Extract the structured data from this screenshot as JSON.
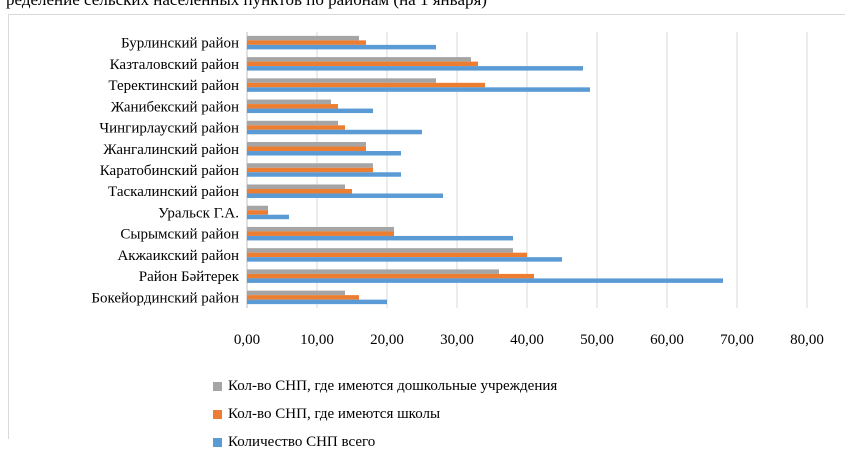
{
  "caption": "ределение сельских населенных пунктов по районам (на 1 января)",
  "chart_data": {
    "type": "bar",
    "orientation": "horizontal",
    "categories": [
      "Бурлинский район",
      "Казталовский район",
      "Теректинский район",
      "Жанибекский район",
      "Чингирлауский район",
      "Жангалинский район",
      "Каратобинский район",
      "Таскалинский район",
      "Уральск Г.А.",
      "Сырымский район",
      "Акжаикский район",
      "Район Бәйтерек",
      "Бокейординский район"
    ],
    "series": [
      {
        "name": "Кол-во СНП, где имеются дошкольные учреждения",
        "color": "#a5a5a5",
        "values": [
          16,
          32,
          27,
          12,
          13,
          17,
          18,
          14,
          3,
          21,
          38,
          36,
          14
        ]
      },
      {
        "name": "Кол-во СНП, где имеются школы",
        "color": "#ed7d31",
        "values": [
          17,
          33,
          34,
          13,
          14,
          17,
          18,
          15,
          3,
          21,
          40,
          41,
          16
        ]
      },
      {
        "name": "Количество СНП всего",
        "color": "#5b9bd5",
        "values": [
          27,
          48,
          49,
          18,
          25,
          22,
          22,
          28,
          6,
          38,
          45,
          68,
          20
        ]
      }
    ],
    "xlim": [
      0,
      80
    ],
    "xticks": [
      "0,00",
      "10,00",
      "20,00",
      "30,00",
      "40,00",
      "50,00",
      "60,00",
      "70,00",
      "80,00"
    ],
    "grid": true,
    "legend_position": "bottom"
  }
}
